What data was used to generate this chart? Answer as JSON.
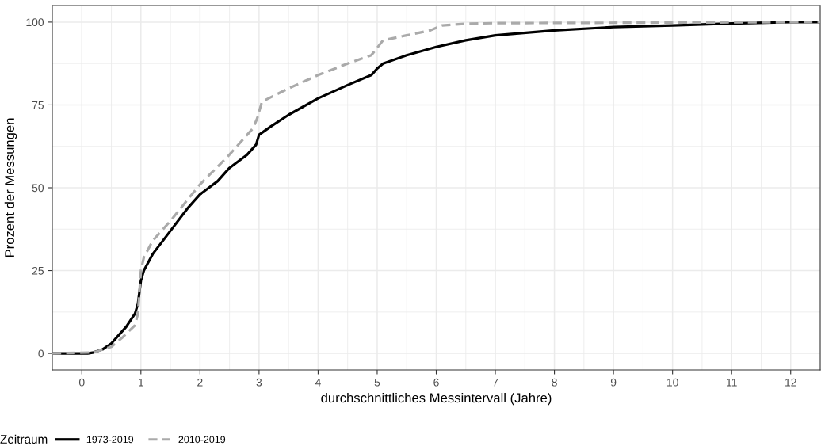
{
  "chart_data": {
    "type": "line",
    "xlabel": "durchschnittliches Messintervall (Jahre)",
    "ylabel": "Prozent der Messungen",
    "legend_title": "Zeitraum",
    "legend": "bottom",
    "grid": true,
    "xlim": [
      -0.5,
      12.5
    ],
    "ylim": [
      -5,
      105
    ],
    "xticks": [
      0,
      1,
      2,
      3,
      4,
      5,
      6,
      7,
      8,
      9,
      10,
      11,
      12
    ],
    "yticks": [
      0,
      25,
      50,
      75,
      100
    ],
    "series": [
      {
        "name": "1973-2019",
        "color": "#000000",
        "line_style": "solid",
        "x": [
          -0.5,
          0,
          0.1,
          0.2,
          0.35,
          0.5,
          0.6,
          0.75,
          0.9,
          0.95,
          1.0,
          1.05,
          1.2,
          1.5,
          1.8,
          2.0,
          2.3,
          2.5,
          2.8,
          2.95,
          3.0,
          3.2,
          3.5,
          4.0,
          4.5,
          4.9,
          5.0,
          5.1,
          5.5,
          6.0,
          6.5,
          7,
          8,
          9,
          10,
          11,
          12,
          12.5
        ],
        "values": [
          0,
          0,
          0,
          0.3,
          1.2,
          3,
          5,
          8,
          12,
          15,
          22,
          25,
          30,
          37,
          44,
          48,
          52,
          56,
          60,
          63,
          66,
          68.5,
          72,
          77,
          81,
          84,
          86,
          87.5,
          90,
          92.5,
          94.5,
          96,
          97.5,
          98.5,
          99,
          99.6,
          100,
          100
        ]
      },
      {
        "name": "2010-2019",
        "color": "#aaaaaa",
        "line_style": "dashed",
        "x": [
          -0.5,
          0.2,
          0.5,
          0.7,
          0.9,
          0.95,
          1.0,
          1.05,
          1.2,
          1.5,
          2,
          2.5,
          2.9,
          2.97,
          3.05,
          3.5,
          4,
          4.5,
          4.9,
          5.1,
          5.5,
          5.9,
          6.1,
          6.5,
          7,
          12.5
        ],
        "values": [
          0,
          0.3,
          2,
          5,
          8.5,
          12,
          25,
          29,
          34,
          40,
          51,
          60,
          68,
          71,
          76,
          80,
          84,
          87.5,
          90,
          94.5,
          96,
          97.5,
          99,
          99.5,
          99.7,
          100
        ]
      }
    ]
  }
}
